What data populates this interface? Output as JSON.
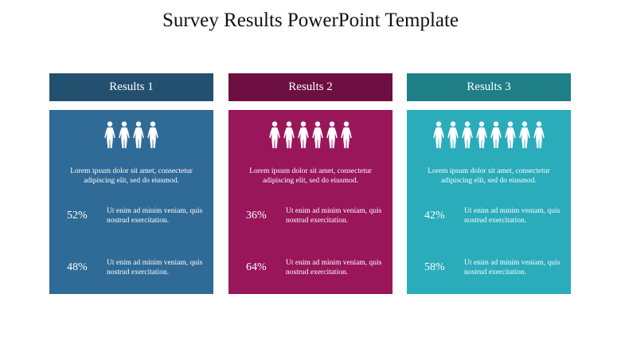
{
  "page": {
    "title": "Survey Results PowerPoint Template"
  },
  "columns": [
    {
      "header": "Results 1",
      "header_color": "#24506f",
      "card_color": "#2f6b96",
      "people_count": 4,
      "description": "Lorem ipsum dolor sit amet, consectetur adipiscing elit, sed do eiusmod.",
      "stats": [
        {
          "percent": "52%",
          "text": "Ut enim ad minim veniam, quis nostrud exercitation."
        },
        {
          "percent": "48%",
          "text": "Ut enim ad minim veniam, quis nostrud exercitation."
        }
      ]
    },
    {
      "header": "Results 2",
      "header_color": "#6d0f40",
      "card_color": "#99165b",
      "people_count": 6,
      "description": "Lorem ipsum dolor sit amet, consectetur adipiscing elit, sed do eiusmod.",
      "stats": [
        {
          "percent": "36%",
          "text": "Ut enim ad minim veniam, quis nostrud exercitation."
        },
        {
          "percent": "64%",
          "text": "Ut enim ad minim veniam, quis nostrud exercitation."
        }
      ]
    },
    {
      "header": "Results 3",
      "header_color": "#1e7f86",
      "card_color": "#2aacbb",
      "people_count": 8,
      "description": "Lorem ipsum dolor sit amet, consectetur adipiscing elit, sed do eiusmod.",
      "stats": [
        {
          "percent": "42%",
          "text": "Ut enim ad minim veniam, quis nostrud exercitation."
        },
        {
          "percent": "58%",
          "text": "Ut enim ad minim veniam, quis nostrud exercitation."
        }
      ]
    }
  ]
}
